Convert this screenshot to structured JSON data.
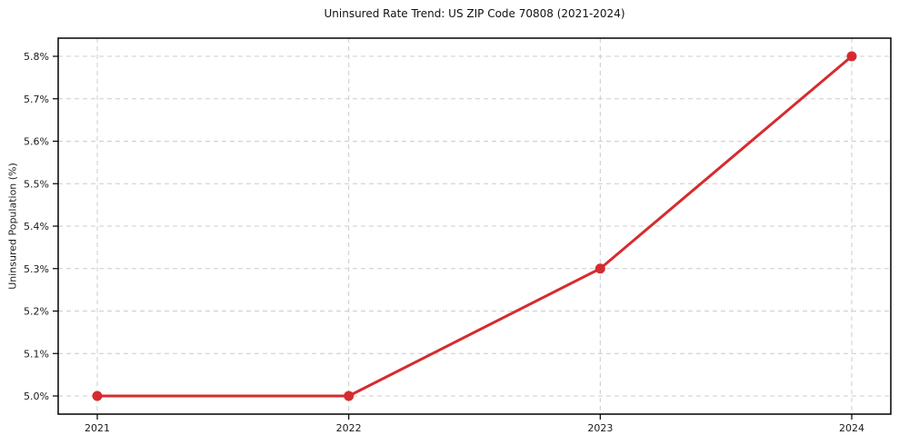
{
  "chart_data": {
    "type": "line",
    "title": "Uninsured Rate Trend: US ZIP Code 70808 (2021-2024)",
    "xlabel": "",
    "ylabel": "Uninsured Population (%)",
    "categories": [
      "2021",
      "2022",
      "2023",
      "2024"
    ],
    "values": [
      5.0,
      5.0,
      5.3,
      5.8
    ],
    "y_ticks": [
      {
        "value": 5.0,
        "label": "5.0%"
      },
      {
        "value": 5.1,
        "label": "5.1%"
      },
      {
        "value": 5.2,
        "label": "5.2%"
      },
      {
        "value": 5.3,
        "label": "5.3%"
      },
      {
        "value": 5.4,
        "label": "5.4%"
      },
      {
        "value": 5.5,
        "label": "5.5%"
      },
      {
        "value": 5.6,
        "label": "5.6%"
      },
      {
        "value": 5.7,
        "label": "5.7%"
      },
      {
        "value": 5.8,
        "label": "5.8%"
      }
    ],
    "ylim": [
      5.0,
      5.8
    ],
    "grid": "dashed",
    "legend_position": "none",
    "colors": {
      "line": "#d62b2e",
      "marker": "#d62b2e",
      "grid": "#cccccc",
      "spine": "#000000",
      "text": "#1a1a1a",
      "background": "#ffffff"
    }
  }
}
